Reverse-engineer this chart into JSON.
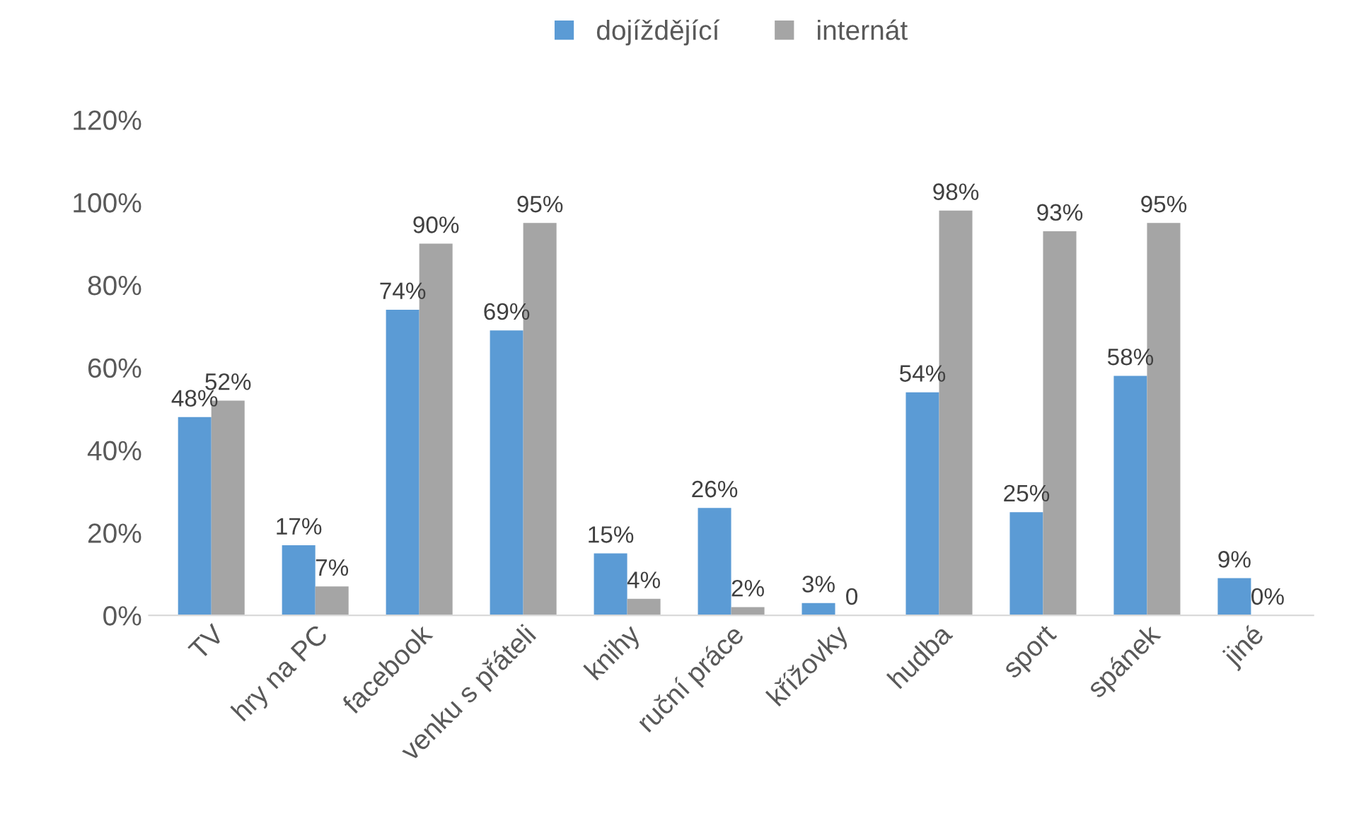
{
  "chart_data": {
    "type": "bar",
    "categories": [
      "TV",
      "hry na PC",
      "facebook",
      "venku s přáteli",
      "knihy",
      "ruční práce",
      "křížovky",
      "hudba",
      "sport",
      "spánek",
      "jiné"
    ],
    "series": [
      {
        "name": "dojíždějící",
        "color": "#5b9bd5",
        "values": [
          48,
          17,
          74,
          69,
          15,
          26,
          3,
          54,
          25,
          58,
          9
        ],
        "value_labels": [
          "48%",
          "17%",
          "74%",
          "69%",
          "15%",
          "26%",
          "3%",
          "54%",
          "25%",
          "58%",
          "9%"
        ]
      },
      {
        "name": "internát",
        "color": "#a5a5a5",
        "values": [
          52,
          7,
          90,
          95,
          4,
          2,
          0,
          98,
          93,
          95,
          0
        ],
        "value_labels": [
          "52%",
          "7%",
          "90%",
          "95%",
          "4%",
          "2%",
          "0",
          "98%",
          "93%",
          "95%",
          "0%"
        ]
      }
    ],
    "ylim": [
      0,
      120
    ],
    "yticks": [
      {
        "value": 0,
        "label": "0%"
      },
      {
        "value": 20,
        "label": "20%"
      },
      {
        "value": 40,
        "label": "40%"
      },
      {
        "value": 60,
        "label": "60%"
      },
      {
        "value": 80,
        "label": "80%"
      },
      {
        "value": 100,
        "label": "100%"
      },
      {
        "value": 120,
        "label": "120%"
      }
    ],
    "grid": false,
    "legend": "top"
  }
}
